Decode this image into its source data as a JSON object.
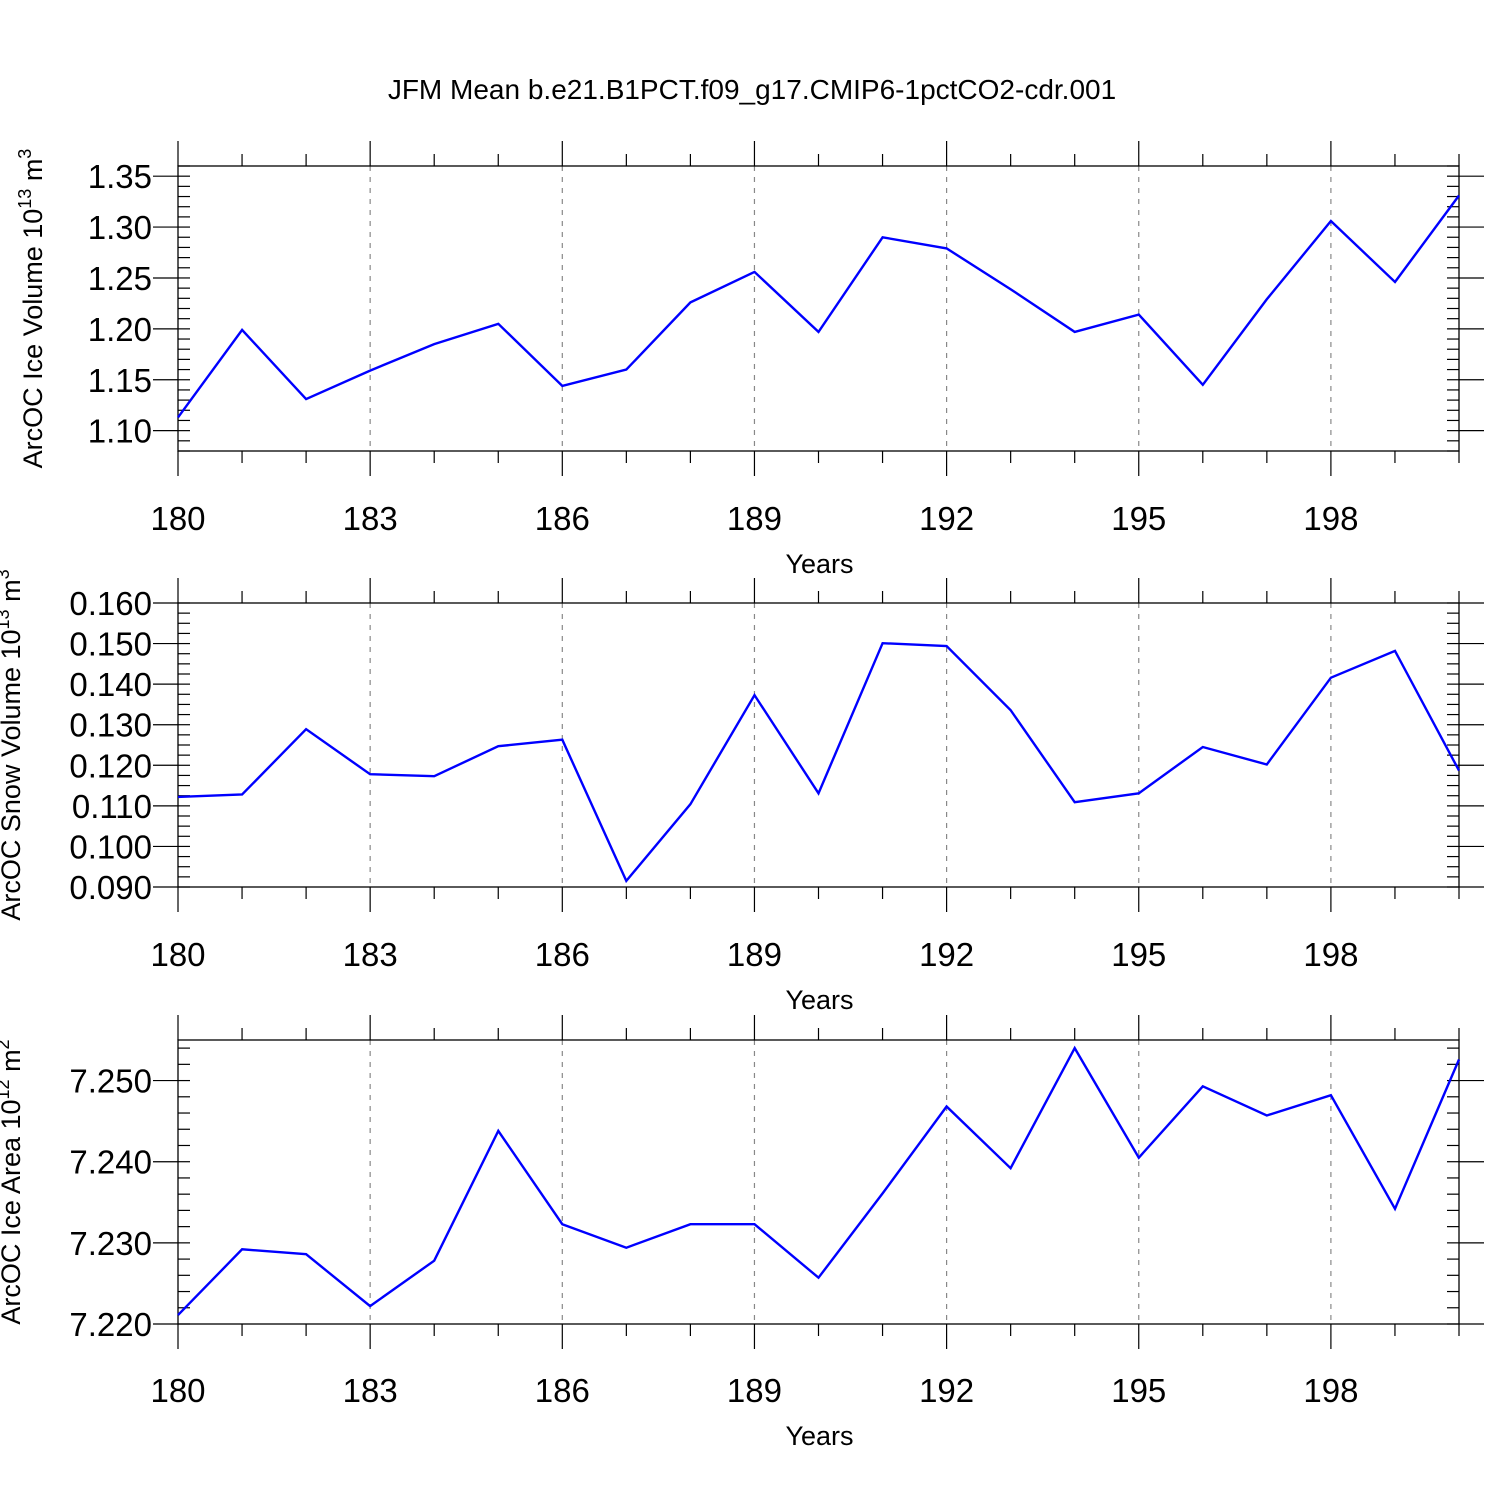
{
  "title": "JFM Mean b.e21.B1PCT.f09_g17.CMIP6-1pctCO2-cdr.001",
  "line_color": "#0000ff",
  "chart_data": [
    {
      "type": "line",
      "ylabel": "ArcOC Ice Volume 10",
      "ylabel_sup": "13",
      "ylabel_unit": " m",
      "ylabel_unit_sup": "3",
      "xlabel": "Years",
      "xlim": [
        180,
        200
      ],
      "ylim": [
        1.08,
        1.36
      ],
      "x_ticks": [
        180,
        183,
        186,
        189,
        192,
        195,
        198
      ],
      "x_tick_labels": [
        "180",
        "183",
        "186",
        "189",
        "192",
        "195",
        "198"
      ],
      "y_ticks": [
        1.1,
        1.15,
        1.2,
        1.25,
        1.3,
        1.35
      ],
      "y_tick_labels": [
        "1.10",
        "1.15",
        "1.20",
        "1.25",
        "1.30",
        "1.35"
      ],
      "y_minor_step": 0.01,
      "x": [
        180,
        181,
        182,
        183,
        184,
        185,
        186,
        187,
        188,
        189,
        190,
        191,
        192,
        193,
        194,
        195,
        196,
        197,
        198,
        199,
        200
      ],
      "values": [
        1.113,
        1.199,
        1.131,
        1.159,
        1.185,
        1.205,
        1.144,
        1.16,
        1.226,
        1.256,
        1.197,
        1.29,
        1.279,
        1.239,
        1.197,
        1.214,
        1.145,
        1.229,
        1.306,
        1.246,
        1.331
      ]
    },
    {
      "type": "line",
      "ylabel": "ArcOC Snow Volume 10",
      "ylabel_sup": "13",
      "ylabel_unit": " m",
      "ylabel_unit_sup": "3",
      "xlabel": "Years",
      "xlim": [
        180,
        200
      ],
      "ylim": [
        0.09,
        0.16
      ],
      "x_ticks": [
        180,
        183,
        186,
        189,
        192,
        195,
        198
      ],
      "x_tick_labels": [
        "180",
        "183",
        "186",
        "189",
        "192",
        "195",
        "198"
      ],
      "y_ticks": [
        0.09,
        0.1,
        0.11,
        0.12,
        0.13,
        0.14,
        0.15,
        0.16
      ],
      "y_tick_labels": [
        "0.090",
        "0.100",
        "0.110",
        "0.120",
        "0.130",
        "0.140",
        "0.150",
        "0.160"
      ],
      "y_minor_step": 0.0025,
      "x": [
        180,
        181,
        182,
        183,
        184,
        185,
        186,
        187,
        188,
        189,
        190,
        191,
        192,
        193,
        194,
        195,
        196,
        197,
        198,
        199,
        200
      ],
      "values": [
        0.1122,
        0.1128,
        0.1289,
        0.1178,
        0.1173,
        0.1247,
        0.1263,
        0.0915,
        0.1104,
        0.1373,
        0.1131,
        0.1501,
        0.1494,
        0.1336,
        0.1109,
        0.1131,
        0.1245,
        0.1202,
        0.1416,
        0.1482,
        0.1187
      ]
    },
    {
      "type": "line",
      "ylabel": "ArcOC Ice Area 10",
      "ylabel_sup": "12",
      "ylabel_unit": " m",
      "ylabel_unit_sup": "2",
      "xlabel": "Years",
      "xlim": [
        180,
        200
      ],
      "ylim": [
        7.22,
        7.255
      ],
      "x_ticks": [
        180,
        183,
        186,
        189,
        192,
        195,
        198
      ],
      "x_tick_labels": [
        "180",
        "183",
        "186",
        "189",
        "192",
        "195",
        "198"
      ],
      "y_ticks": [
        7.22,
        7.23,
        7.24,
        7.25
      ],
      "y_tick_labels": [
        "7.220",
        "7.230",
        "7.240",
        "7.250"
      ],
      "y_minor_step": 0.002,
      "x": [
        180,
        181,
        182,
        183,
        184,
        185,
        186,
        187,
        188,
        189,
        190,
        191,
        192,
        193,
        194,
        195,
        196,
        197,
        198,
        199,
        200
      ],
      "values": [
        7.2211,
        7.2292,
        7.2286,
        7.2222,
        7.2278,
        7.2438,
        7.2323,
        7.2294,
        7.2323,
        7.2323,
        7.2257,
        7.2361,
        7.2468,
        7.2392,
        7.254,
        7.2405,
        7.2493,
        7.2457,
        7.2482,
        7.2342,
        7.2526
      ]
    }
  ]
}
